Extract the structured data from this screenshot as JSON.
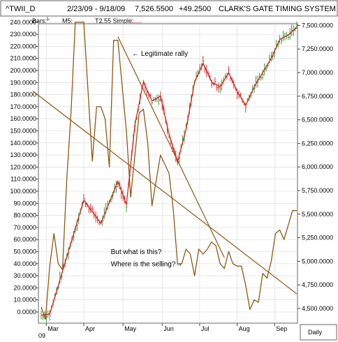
{
  "header": {
    "symbol": "^TWII_D",
    "range": "2/23/09 - 9/18/09",
    "last": "7,526.5500",
    "change": "+49.2500",
    "system": "CLARK'S GATE TIMING SYSTEM ©"
  },
  "legend": {
    "bars": "Bars:",
    "m5": "M5:",
    "t255": "T2.55 Simple:"
  },
  "colors": {
    "background": "#ffffff",
    "grid": "#d8d8d8",
    "oscillator": "#8b5a14",
    "price_up_bar": "#2e8b2e",
    "price_down_bar": "#cc2222",
    "zigzag": "#dd2222",
    "trendline": "#8b5a14"
  },
  "footer": {
    "year": "09",
    "daily": "Daily"
  },
  "chart_data": {
    "type": "line",
    "x_months": [
      "Mar",
      "Apr",
      "May",
      "Jun",
      "Jul",
      "Aug",
      "Sep"
    ],
    "left_axis": {
      "ticks": [
        "240.0000",
        "230.0000",
        "220.0000",
        "210.0000",
        "200.0000",
        "190.0000",
        "180.0000",
        "170.0000",
        "160.0000",
        "150.0000",
        "140.0000",
        "130.0000",
        "120.0000",
        "110.0000",
        "100.0000",
        "90.0000",
        "80.0000",
        "70.0000",
        "60.0000",
        "50.0000",
        "40.0000",
        "30.0000",
        "20.0000",
        "10.0000",
        "0.0000"
      ],
      "range": [
        -7,
        245
      ]
    },
    "right_axis": {
      "ticks": [
        "7,500.0000",
        "7,250.0000",
        "7,000.0000",
        "6,750.0000",
        "6,500.0000",
        "6,250.0000",
        "6,000.0000",
        "5,750.0000",
        "5,500.0000",
        "5,250.0000",
        "5,000.0000",
        "4,750.0000",
        "4,500.0000"
      ],
      "range": [
        4350,
        7530
      ]
    },
    "oscillator": {
      "t": [
        0,
        0.5,
        1,
        1.5,
        2,
        2.5,
        3,
        3.5,
        4,
        5,
        6,
        6.5,
        7,
        7.5,
        8,
        8.5,
        9,
        10,
        10.5,
        11,
        11.5,
        12,
        12.5,
        13,
        14,
        15,
        15.5,
        16,
        16.5,
        17,
        17.5,
        18,
        18.5,
        19,
        19.5,
        20,
        20.5,
        21,
        21.5,
        22,
        22.5,
        23,
        23.5,
        24,
        24.5,
        25,
        25.5,
        26,
        26.5,
        27,
        27.5,
        28,
        28.5,
        29,
        29.5,
        30
      ],
      "values": [
        4,
        -6,
        38,
        65,
        40,
        35,
        110,
        165,
        240,
        240,
        125,
        170,
        170,
        160,
        120,
        225,
        225,
        150,
        95,
        130,
        165,
        168,
        140,
        88,
        130,
        115,
        85,
        40,
        40,
        52,
        48,
        30,
        52,
        48,
        52,
        58,
        55,
        40,
        36,
        50,
        40,
        38,
        38,
        22,
        2,
        10,
        8,
        32,
        28,
        42,
        65,
        68,
        60,
        72,
        84,
        84
      ],
      "value_units": "left axis"
    },
    "price": {
      "zigzag_t": [
        0,
        1,
        5,
        7,
        9,
        10,
        11,
        12,
        13,
        14,
        15,
        16,
        17,
        18,
        19,
        20,
        21,
        22,
        23,
        24,
        25,
        26,
        27,
        28,
        29,
        30
      ],
      "zigzag_values": [
        4430,
        4440,
        5650,
        5400,
        5850,
        5600,
        6450,
        6900,
        6700,
        6750,
        6350,
        6050,
        6400,
        6900,
        7100,
        6900,
        6850,
        7000,
        6800,
        6650,
        6850,
        7000,
        7150,
        7350,
        7400,
        7480
      ],
      "value_units": "right axis"
    },
    "trendlines": [
      {
        "from": [
          -1,
          183
        ],
        "to": [
          30,
          15
        ],
        "axis": "left"
      },
      {
        "from": [
          9,
          228
        ],
        "to": [
          21.5,
          45
        ],
        "axis": "left"
      }
    ],
    "annotations": [
      {
        "text": "← Legitimate rally",
        "t": 10.5,
        "v": 212
      },
      {
        "text": "But what is this?",
        "t": 8,
        "v": 48
      },
      {
        "text": "Where is the selling?→",
        "t": 8,
        "v": 38
      }
    ]
  }
}
